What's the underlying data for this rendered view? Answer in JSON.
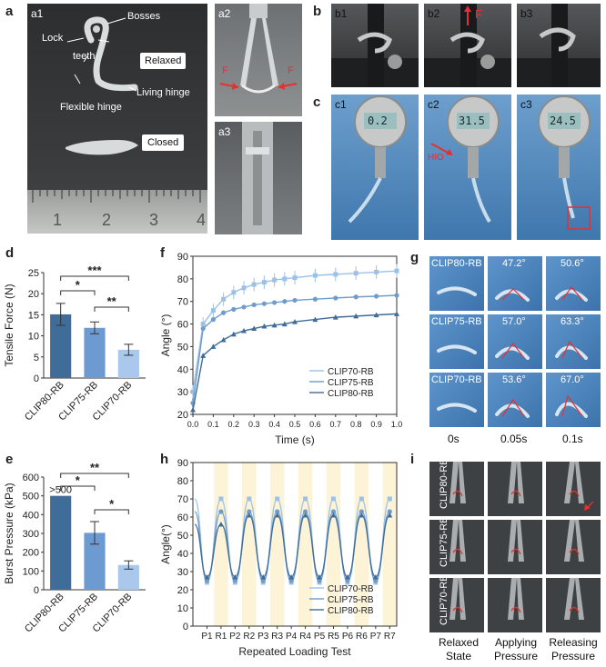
{
  "panel_letters": {
    "a": "a",
    "b": "b",
    "c": "c",
    "d": "d",
    "e": "e",
    "f": "f",
    "g": "g",
    "h": "h",
    "i": "i"
  },
  "panel_a": {
    "sub_a1": "a1",
    "sub_a2": "a2",
    "sub_a3": "a3",
    "bosses": "Bosses",
    "lock": "Lock",
    "teeth": "teeth",
    "living_hinge": "Living hinge",
    "flexible_hinge": "Flexible hinge",
    "relaxed": "Relaxed",
    "closed": "Closed",
    "force_left": "F",
    "force_right": "F",
    "ruler_numbers": [
      "1",
      "2",
      "3",
      "4"
    ]
  },
  "panel_b": {
    "subs": [
      "b1",
      "b2",
      "b3"
    ],
    "force": "F"
  },
  "panel_c": {
    "subs": [
      "c1",
      "c2",
      "c3"
    ],
    "hio": "HIO",
    "readings": [
      "0.2",
      "31.5",
      "24.5"
    ]
  },
  "panel_g": {
    "rows": [
      {
        "label": "CLIP80-RB",
        "angles": [
          "47.2°",
          "50.6°"
        ]
      },
      {
        "label": "CLIP75-RB",
        "angles": [
          "57.0°",
          "63.3°"
        ]
      },
      {
        "label": "CLIP70-RB",
        "angles": [
          "53.6°",
          "67.0°"
        ]
      }
    ],
    "times": [
      "0s",
      "0.05s",
      "0.1s"
    ]
  },
  "panel_i": {
    "rows": [
      "CLIP80-RB",
      "CLIP75-RB",
      "CLIP70-RB"
    ],
    "cols": [
      [
        "Relaxed",
        "State"
      ],
      [
        "Applying",
        "Pressure"
      ],
      [
        "Releasing",
        "Pressure"
      ]
    ]
  },
  "colors": {
    "dark": "#3f6c99",
    "mid": "#6d9ad0",
    "light": "#a9c8ec",
    "line70": "#9cc1e6",
    "line75": "#6f9ccc",
    "line80": "#3f6c99",
    "band": "#fdf3d6"
  },
  "chart_data": [
    {
      "panel": "d",
      "type": "bar",
      "categories": [
        "CLIP80-RB",
        "CLIP75-RB",
        "CLIP70-RB"
      ],
      "values": [
        15.1,
        11.9,
        6.7
      ],
      "errors": [
        2.6,
        1.4,
        1.3
      ],
      "ylabel": "Tensile Force (N)",
      "ylim": [
        0,
        25
      ],
      "yticks": [
        0,
        5,
        10,
        15,
        20,
        25
      ],
      "significance": [
        {
          "pair": [
            0,
            1
          ],
          "mark": "*"
        },
        {
          "pair": [
            1,
            2
          ],
          "mark": "**"
        },
        {
          "pair": [
            0,
            2
          ],
          "mark": "***"
        }
      ]
    },
    {
      "panel": "e",
      "type": "bar",
      "categories": [
        "CLIP80-RB",
        "CLIP75-RB",
        "CLIP70-RB"
      ],
      "values": [
        500,
        303,
        132
      ],
      "errors": [
        0,
        60,
        22
      ],
      "annotation": ">500",
      "ylabel": "Burst Pressure (kPa)",
      "ylim": [
        0,
        600
      ],
      "yticks": [
        0,
        100,
        200,
        300,
        400,
        500,
        600
      ],
      "significance": [
        {
          "pair": [
            0,
            1
          ],
          "mark": "*"
        },
        {
          "pair": [
            1,
            2
          ],
          "mark": "*"
        },
        {
          "pair": [
            0,
            2
          ],
          "mark": "**"
        }
      ]
    },
    {
      "panel": "f",
      "type": "line",
      "xlabel": "Time (s)",
      "ylabel": "Angle (°)",
      "xlim": [
        0,
        1
      ],
      "ylim": [
        20,
        90
      ],
      "xticks": [
        "0.0",
        "0.1",
        "0.2",
        "0.3",
        "0.4",
        "0.5",
        "0.6",
        "0.7",
        "0.8",
        "0.9",
        "1.0"
      ],
      "yticks": [
        20,
        30,
        40,
        50,
        60,
        70,
        80,
        90
      ],
      "legend_position": "bottom-right",
      "series": [
        {
          "name": "CLIP70-RB",
          "x": [
            0,
            0.05,
            0.1,
            0.15,
            0.2,
            0.25,
            0.3,
            0.35,
            0.4,
            0.45,
            0.5,
            0.6,
            0.7,
            0.8,
            0.9,
            1.0
          ],
          "y": [
            30,
            60,
            66,
            71,
            74,
            76,
            77.5,
            78.5,
            79.5,
            80,
            80.5,
            81.5,
            82,
            82.5,
            83,
            83.5
          ],
          "err": 3
        },
        {
          "name": "CLIP75-RB",
          "x": [
            0,
            0.05,
            0.1,
            0.15,
            0.2,
            0.25,
            0.3,
            0.35,
            0.4,
            0.45,
            0.5,
            0.6,
            0.7,
            0.8,
            0.9,
            1.0
          ],
          "y": [
            25,
            58,
            62,
            65,
            66.5,
            67.5,
            68.5,
            69,
            69.5,
            70,
            70.5,
            71,
            71.5,
            72,
            72.3,
            72.7
          ],
          "err": 1
        },
        {
          "name": "CLIP80-RB",
          "x": [
            0,
            0.05,
            0.1,
            0.15,
            0.2,
            0.25,
            0.3,
            0.35,
            0.4,
            0.45,
            0.5,
            0.6,
            0.7,
            0.8,
            0.9,
            1.0
          ],
          "y": [
            22,
            46,
            50,
            53,
            55.5,
            57,
            58,
            59,
            59.5,
            60,
            61,
            62,
            63,
            63.5,
            64,
            64.5
          ],
          "err": 1
        }
      ]
    },
    {
      "panel": "h",
      "type": "line",
      "xlabel": "Repeated Loading Test",
      "ylabel": "Angle(°)",
      "ylim": [
        0,
        90
      ],
      "yticks": [
        0,
        10,
        20,
        30,
        40,
        50,
        60,
        70,
        80,
        90
      ],
      "categories": [
        "P1",
        "R1",
        "P2",
        "R2",
        "P3",
        "R3",
        "P4",
        "R4",
        "P5",
        "R5",
        "P6",
        "R6",
        "P7",
        "R7"
      ],
      "legend_position": "bottom-right",
      "series": [
        {
          "name": "CLIP70-RB",
          "peaks": [
            70,
            70,
            70,
            70,
            70,
            70,
            70
          ],
          "troughs": [
            24,
            24,
            24,
            24,
            24,
            24,
            24
          ]
        },
        {
          "name": "CLIP75-RB",
          "peaks": [
            63,
            63,
            63,
            63,
            63,
            63,
            63
          ],
          "troughs": [
            25,
            25,
            25,
            25,
            25,
            25,
            25
          ]
        },
        {
          "name": "CLIP80-RB",
          "peaks": [
            56,
            61,
            61,
            61,
            61,
            61,
            61
          ],
          "troughs": [
            27,
            27,
            27,
            27,
            27,
            27,
            27
          ]
        }
      ]
    }
  ]
}
